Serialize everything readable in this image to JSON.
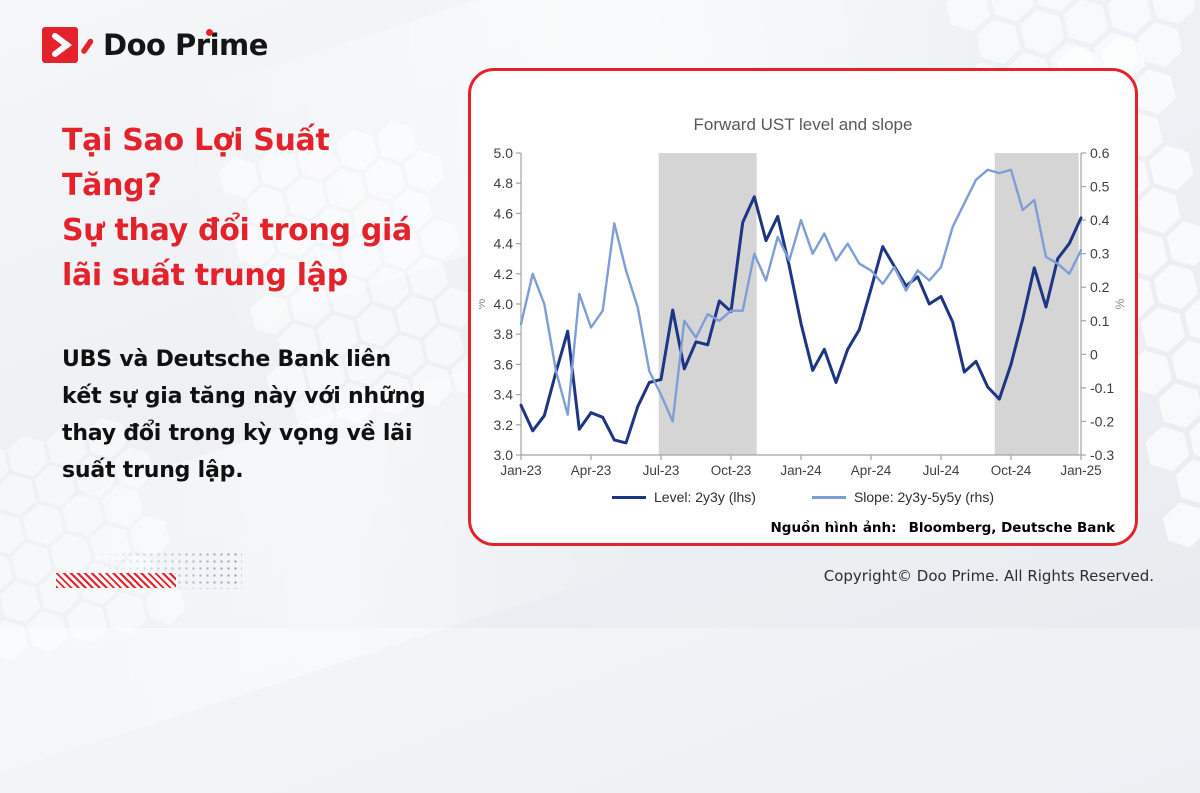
{
  "brand": {
    "name": "Doo Prime"
  },
  "headline": "Tại Sao Lợi Suất\nTăng?\nSự thay đổi trong giá\nlãi suất trung lập",
  "body_text": "UBS và Deutsche Bank liên\nkết sự gia tăng này với những\nthay đổi trong kỳ vọng về lãi\nsuất trung lập.",
  "footer": {
    "copyright": "Copyright© Doo Prime. All Rights Reserved."
  },
  "colors": {
    "brand_red": "#e3222c",
    "headline_red": "#e3222c",
    "level_line": "#1d3583",
    "slope_line": "#7f9dd7",
    "shaded_band": "#d5d5d5"
  },
  "chart_data": {
    "type": "line",
    "title": "Forward UST level and slope",
    "x_tick_labels": [
      "Jan-23",
      "Apr-23",
      "Jul-23",
      "Oct-23",
      "Jan-24",
      "Apr-24",
      "Jul-24",
      "Oct-24",
      "Jan-25"
    ],
    "x_range_months": [
      0,
      24
    ],
    "left_axis": {
      "label": "%",
      "min": 3.0,
      "max": 5.0,
      "step": 0.2
    },
    "right_axis": {
      "label": "%",
      "min": -0.3,
      "max": 0.6,
      "step": 0.1
    },
    "shaded_regions_months": [
      [
        5.9,
        10.1
      ],
      [
        20.3,
        23.9
      ]
    ],
    "band_color": "#d5d5d5",
    "grid": false,
    "legend_position": "bottom",
    "series": [
      {
        "name": "Level: 2y3y (lhs)",
        "axis": "left",
        "color": "#1d3583",
        "values": [
          3.33,
          3.16,
          3.26,
          3.55,
          3.82,
          3.17,
          3.28,
          3.25,
          3.1,
          3.08,
          3.32,
          3.48,
          3.5,
          3.96,
          3.57,
          3.75,
          3.73,
          4.02,
          3.95,
          4.54,
          4.71,
          4.42,
          4.58,
          4.25,
          3.87,
          3.56,
          3.7,
          3.48,
          3.7,
          3.83,
          4.1,
          4.38,
          4.25,
          4.12,
          4.18,
          4.0,
          4.05,
          3.88,
          3.55,
          3.62,
          3.45,
          3.37,
          3.6,
          3.9,
          4.24,
          3.98,
          4.3,
          4.4,
          4.57
        ]
      },
      {
        "name": "Slope: 2y3y-5y5y (rhs)",
        "axis": "right",
        "color": "#7f9dd7",
        "values": [
          0.09,
          0.24,
          0.15,
          -0.05,
          -0.18,
          0.18,
          0.08,
          0.13,
          0.39,
          0.25,
          0.14,
          -0.05,
          -0.12,
          -0.2,
          0.1,
          0.05,
          0.12,
          0.1,
          0.13,
          0.13,
          0.3,
          0.22,
          0.35,
          0.28,
          0.4,
          0.3,
          0.36,
          0.28,
          0.33,
          0.27,
          0.25,
          0.21,
          0.26,
          0.19,
          0.25,
          0.22,
          0.26,
          0.38,
          0.45,
          0.52,
          0.55,
          0.54,
          0.55,
          0.43,
          0.46,
          0.29,
          0.27,
          0.24,
          0.31
        ]
      }
    ],
    "source_label": "Nguồn hình ảnh:",
    "source_value": "Bloomberg, Deutsche Bank"
  }
}
